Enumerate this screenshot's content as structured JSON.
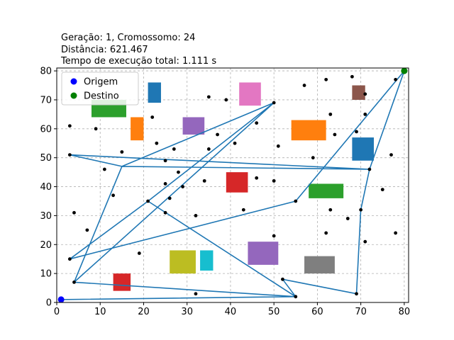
{
  "chart_data": {
    "type": "scatter",
    "title_lines": [
      "Geração: 1, Cromossomo: 24",
      "Distância: 621.467",
      "Tempo de execução total: 1.111 s"
    ],
    "xlim": [
      0,
      81
    ],
    "ylim": [
      0,
      81
    ],
    "xticks": [
      0,
      10,
      20,
      30,
      40,
      50,
      60,
      70,
      80
    ],
    "yticks": [
      0,
      10,
      20,
      30,
      40,
      50,
      60,
      70,
      80
    ],
    "grid": true,
    "legend": {
      "placement": "top-left",
      "entries": [
        {
          "label": "Origem",
          "color": "#0000ff"
        },
        {
          "label": "Destino",
          "color": "#008000"
        }
      ]
    },
    "origin": {
      "x": 1,
      "y": 1
    },
    "destination": {
      "x": 80,
      "y": 80
    },
    "points": [
      [
        3,
        61
      ],
      [
        9,
        60
      ],
      [
        3,
        51
      ],
      [
        11,
        46
      ],
      [
        15,
        52
      ],
      [
        13,
        37
      ],
      [
        4,
        31
      ],
      [
        7,
        25
      ],
      [
        3,
        15
      ],
      [
        4,
        7
      ],
      [
        19,
        17
      ],
      [
        22,
        64
      ],
      [
        23,
        55
      ],
      [
        25,
        49
      ],
      [
        27,
        53
      ],
      [
        28,
        45
      ],
      [
        25,
        41
      ],
      [
        29,
        40
      ],
      [
        21,
        35
      ],
      [
        25,
        31
      ],
      [
        26,
        36
      ],
      [
        32,
        30
      ],
      [
        32,
        3
      ],
      [
        34,
        42
      ],
      [
        35,
        71
      ],
      [
        35,
        53
      ],
      [
        37,
        58
      ],
      [
        39,
        70
      ],
      [
        41,
        55
      ],
      [
        43,
        32
      ],
      [
        46,
        62
      ],
      [
        46,
        43
      ],
      [
        50,
        42
      ],
      [
        50,
        69
      ],
      [
        51,
        54
      ],
      [
        50,
        23
      ],
      [
        52,
        8
      ],
      [
        55,
        35
      ],
      [
        55,
        2
      ],
      [
        57,
        75
      ],
      [
        59,
        50
      ],
      [
        62,
        77
      ],
      [
        63,
        65
      ],
      [
        64,
        58
      ],
      [
        62,
        24
      ],
      [
        63,
        32
      ],
      [
        67,
        29
      ],
      [
        68,
        78
      ],
      [
        69,
        59
      ],
      [
        71,
        72
      ],
      [
        71,
        65
      ],
      [
        72,
        46
      ],
      [
        70,
        32
      ],
      [
        71,
        21
      ],
      [
        69,
        3
      ],
      [
        75,
        39
      ],
      [
        77,
        51
      ],
      [
        78,
        77
      ],
      [
        78,
        24
      ]
    ],
    "route": [
      [
        1,
        1
      ],
      [
        55,
        2
      ],
      [
        4,
        7
      ],
      [
        15,
        47
      ],
      [
        72,
        46
      ],
      [
        3,
        51
      ],
      [
        15,
        47
      ],
      [
        50,
        69
      ],
      [
        4,
        7
      ],
      [
        50,
        69
      ],
      [
        21,
        35
      ],
      [
        55,
        2
      ],
      [
        52,
        8
      ],
      [
        69,
        3
      ],
      [
        70,
        32
      ],
      [
        72,
        46
      ],
      [
        80,
        80
      ],
      [
        55,
        35
      ],
      [
        3,
        15
      ],
      [
        21,
        35
      ]
    ],
    "route_color": "#1f77b4",
    "obstacles": [
      {
        "x": 21,
        "y": 69,
        "w": 3,
        "h": 7,
        "color": "#1f77b4"
      },
      {
        "x": 8,
        "y": 64,
        "w": 8,
        "h": 6,
        "color": "#2ca02c"
      },
      {
        "x": 17,
        "y": 56,
        "w": 3,
        "h": 8,
        "color": "#ff7f0e"
      },
      {
        "x": 29,
        "y": 58,
        "w": 5,
        "h": 6,
        "color": "#9467bd"
      },
      {
        "x": 42,
        "y": 68,
        "w": 5,
        "h": 8,
        "color": "#e377c2"
      },
      {
        "x": 54,
        "y": 56,
        "w": 8,
        "h": 7,
        "color": "#ff7f0e"
      },
      {
        "x": 68,
        "y": 70,
        "w": 3,
        "h": 5,
        "color": "#8c564b"
      },
      {
        "x": 68,
        "y": 49,
        "w": 5,
        "h": 8,
        "color": "#1f77b4"
      },
      {
        "x": 39,
        "y": 38,
        "w": 5,
        "h": 7,
        "color": "#d62728"
      },
      {
        "x": 58,
        "y": 36,
        "w": 8,
        "h": 5,
        "color": "#2ca02c"
      },
      {
        "x": 26,
        "y": 10,
        "w": 6,
        "h": 8,
        "color": "#bcbd22"
      },
      {
        "x": 33,
        "y": 11,
        "w": 3,
        "h": 7,
        "color": "#17becf"
      },
      {
        "x": 44,
        "y": 13,
        "w": 7,
        "h": 8,
        "color": "#9467bd"
      },
      {
        "x": 57,
        "y": 10,
        "w": 7,
        "h": 6,
        "color": "#7f7f7f"
      },
      {
        "x": 13,
        "y": 4,
        "w": 4,
        "h": 6,
        "color": "#d62728"
      }
    ]
  }
}
